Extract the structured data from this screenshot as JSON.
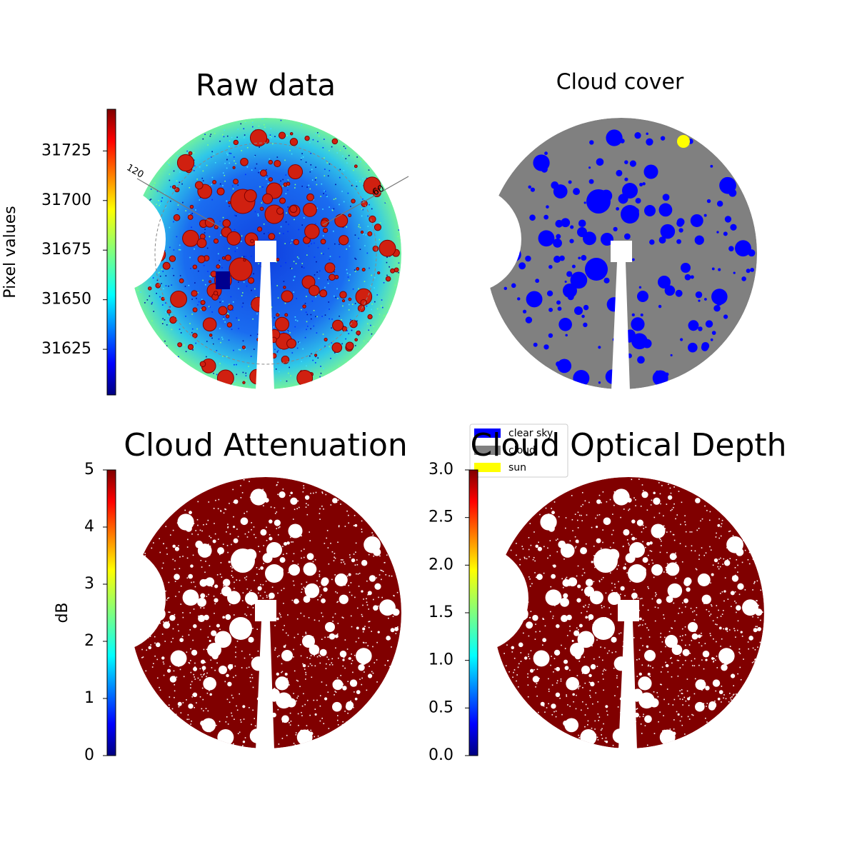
{
  "chart_data": [
    {
      "type": "image",
      "title": "Raw data",
      "colorbar": {
        "label": "Pixel values",
        "lim": [
          31602,
          31746
        ],
        "ticks": [
          31625,
          31650,
          31675,
          31700,
          31725
        ]
      },
      "annotations": [
        "120",
        "60"
      ]
    },
    {
      "type": "image",
      "title": "Cloud cover",
      "legend": [
        {
          "name": "clear sky",
          "color": "#0000ff"
        },
        {
          "name": "cloud",
          "color": "#808080"
        },
        {
          "name": "sun",
          "color": "#ffff00"
        }
      ]
    },
    {
      "type": "image",
      "title": "Cloud Attenuation",
      "colorbar": {
        "label": "dB",
        "lim": [
          0,
          5
        ],
        "ticks": [
          0,
          1,
          2,
          3,
          4,
          5
        ]
      }
    },
    {
      "type": "image",
      "title": "Cloud Optical Depth",
      "colorbar": {
        "lim": [
          0,
          3
        ],
        "ticks": [
          {
            "value": 0,
            "label": "0.0"
          },
          {
            "value": 0.5,
            "label": "0.5"
          },
          {
            "value": 1,
            "label": "1.0"
          },
          {
            "value": 1.5,
            "label": "1.5"
          },
          {
            "value": 2,
            "label": "2.0"
          },
          {
            "value": 2.5,
            "label": "2.5"
          },
          {
            "value": 3,
            "label": "3.0"
          }
        ]
      }
    }
  ]
}
